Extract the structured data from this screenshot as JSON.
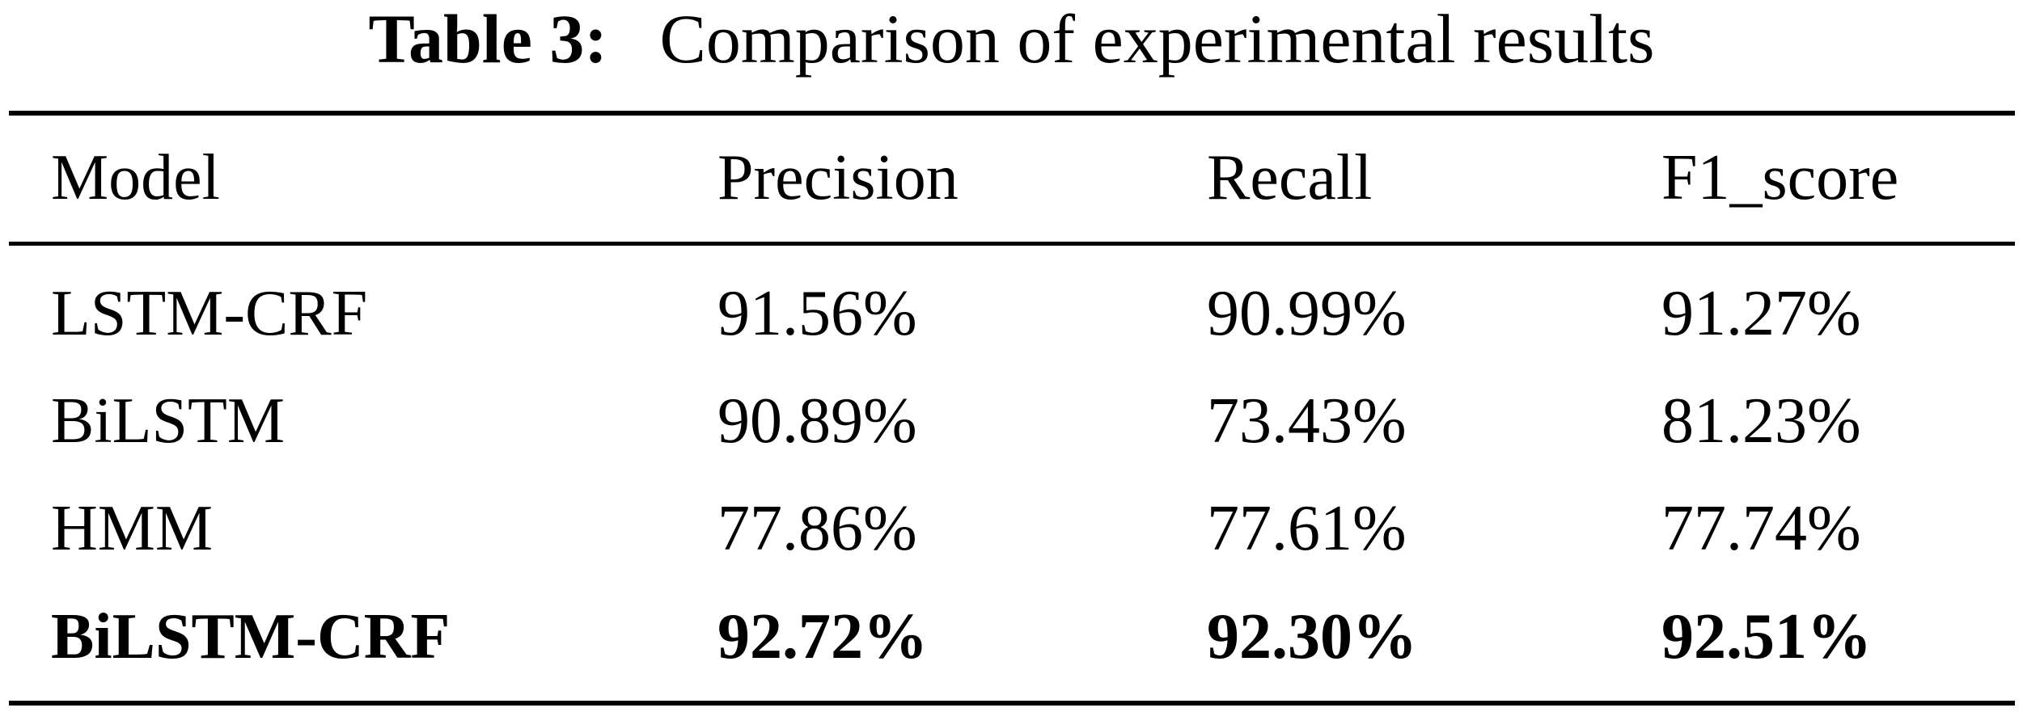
{
  "caption": {
    "label": "Table 3:",
    "text": "Comparison of experimental results"
  },
  "table": {
    "headers": [
      "Model",
      "Precision",
      "Recall",
      "F1_score"
    ],
    "rows": [
      {
        "cells": [
          "LSTM-CRF",
          "91.56%",
          "90.99%",
          "91.27%"
        ],
        "bold": false
      },
      {
        "cells": [
          "BiLSTM",
          "90.89%",
          "73.43%",
          "81.23%"
        ],
        "bold": false
      },
      {
        "cells": [
          "HMM",
          "77.86%",
          "77.61%",
          "77.74%"
        ],
        "bold": false
      },
      {
        "cells": [
          "BiLSTM-CRF",
          "92.72%",
          "92.30%",
          "92.51%"
        ],
        "bold": true
      }
    ]
  }
}
